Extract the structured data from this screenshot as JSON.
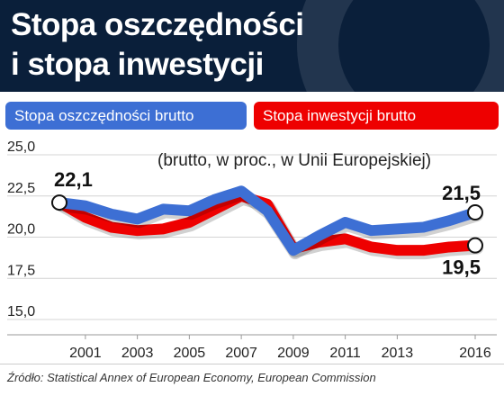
{
  "header": {
    "title_line1": "Stopa oszczędności",
    "title_line2": "i stopa inwestycji"
  },
  "legend": {
    "savings_label": "Stopa oszczędności brutto",
    "investment_label": "Stopa inwestycji brutto"
  },
  "subtitle": "(brutto, w proc., w Unii Europejskiej)",
  "source": "Źródło: Statistical Annex of European Economy, European Commission",
  "colors": {
    "savings": "#3d6fd4",
    "investment": "#ee0000",
    "header_bg": "#0a1f3a"
  },
  "chart_data": {
    "type": "line",
    "x": [
      2000,
      2001,
      2002,
      2003,
      2004,
      2005,
      2006,
      2007,
      2008,
      2009,
      2010,
      2011,
      2012,
      2013,
      2014,
      2015,
      2016
    ],
    "x_tick_labels": [
      "2001",
      "2003",
      "2005",
      "2007",
      "2009",
      "2011",
      "2013",
      "2016"
    ],
    "x_tick_values": [
      2001,
      2003,
      2005,
      2007,
      2009,
      2011,
      2013,
      2016
    ],
    "y_ticks": [
      "25,0",
      "22,5",
      "20,0",
      "17,5",
      "15,0"
    ],
    "y_tick_values": [
      25,
      22.5,
      20,
      17.5,
      15
    ],
    "ylim": [
      15,
      25
    ],
    "series": [
      {
        "name": "Stopa oszczędności brutto",
        "color": "#3d6fd4",
        "values": [
          22.1,
          21.9,
          21.4,
          21.1,
          21.7,
          21.6,
          22.3,
          22.8,
          21.6,
          19.2,
          20.1,
          20.9,
          20.4,
          20.5,
          20.6,
          21.0,
          21.5
        ]
      },
      {
        "name": "Stopa inwestycji brutto",
        "color": "#ee0000",
        "values": [
          22.1,
          21.2,
          20.6,
          20.4,
          20.5,
          20.9,
          21.7,
          22.5,
          22.0,
          19.3,
          19.7,
          19.9,
          19.4,
          19.2,
          19.2,
          19.4,
          19.5
        ]
      }
    ],
    "annotations": [
      {
        "text": "22,1",
        "x": 2000,
        "y": 22.1
      },
      {
        "text": "21,5",
        "x": 2016,
        "y": 21.5
      },
      {
        "text": "19,5",
        "x": 2016,
        "y": 19.5
      }
    ],
    "grid": true
  }
}
